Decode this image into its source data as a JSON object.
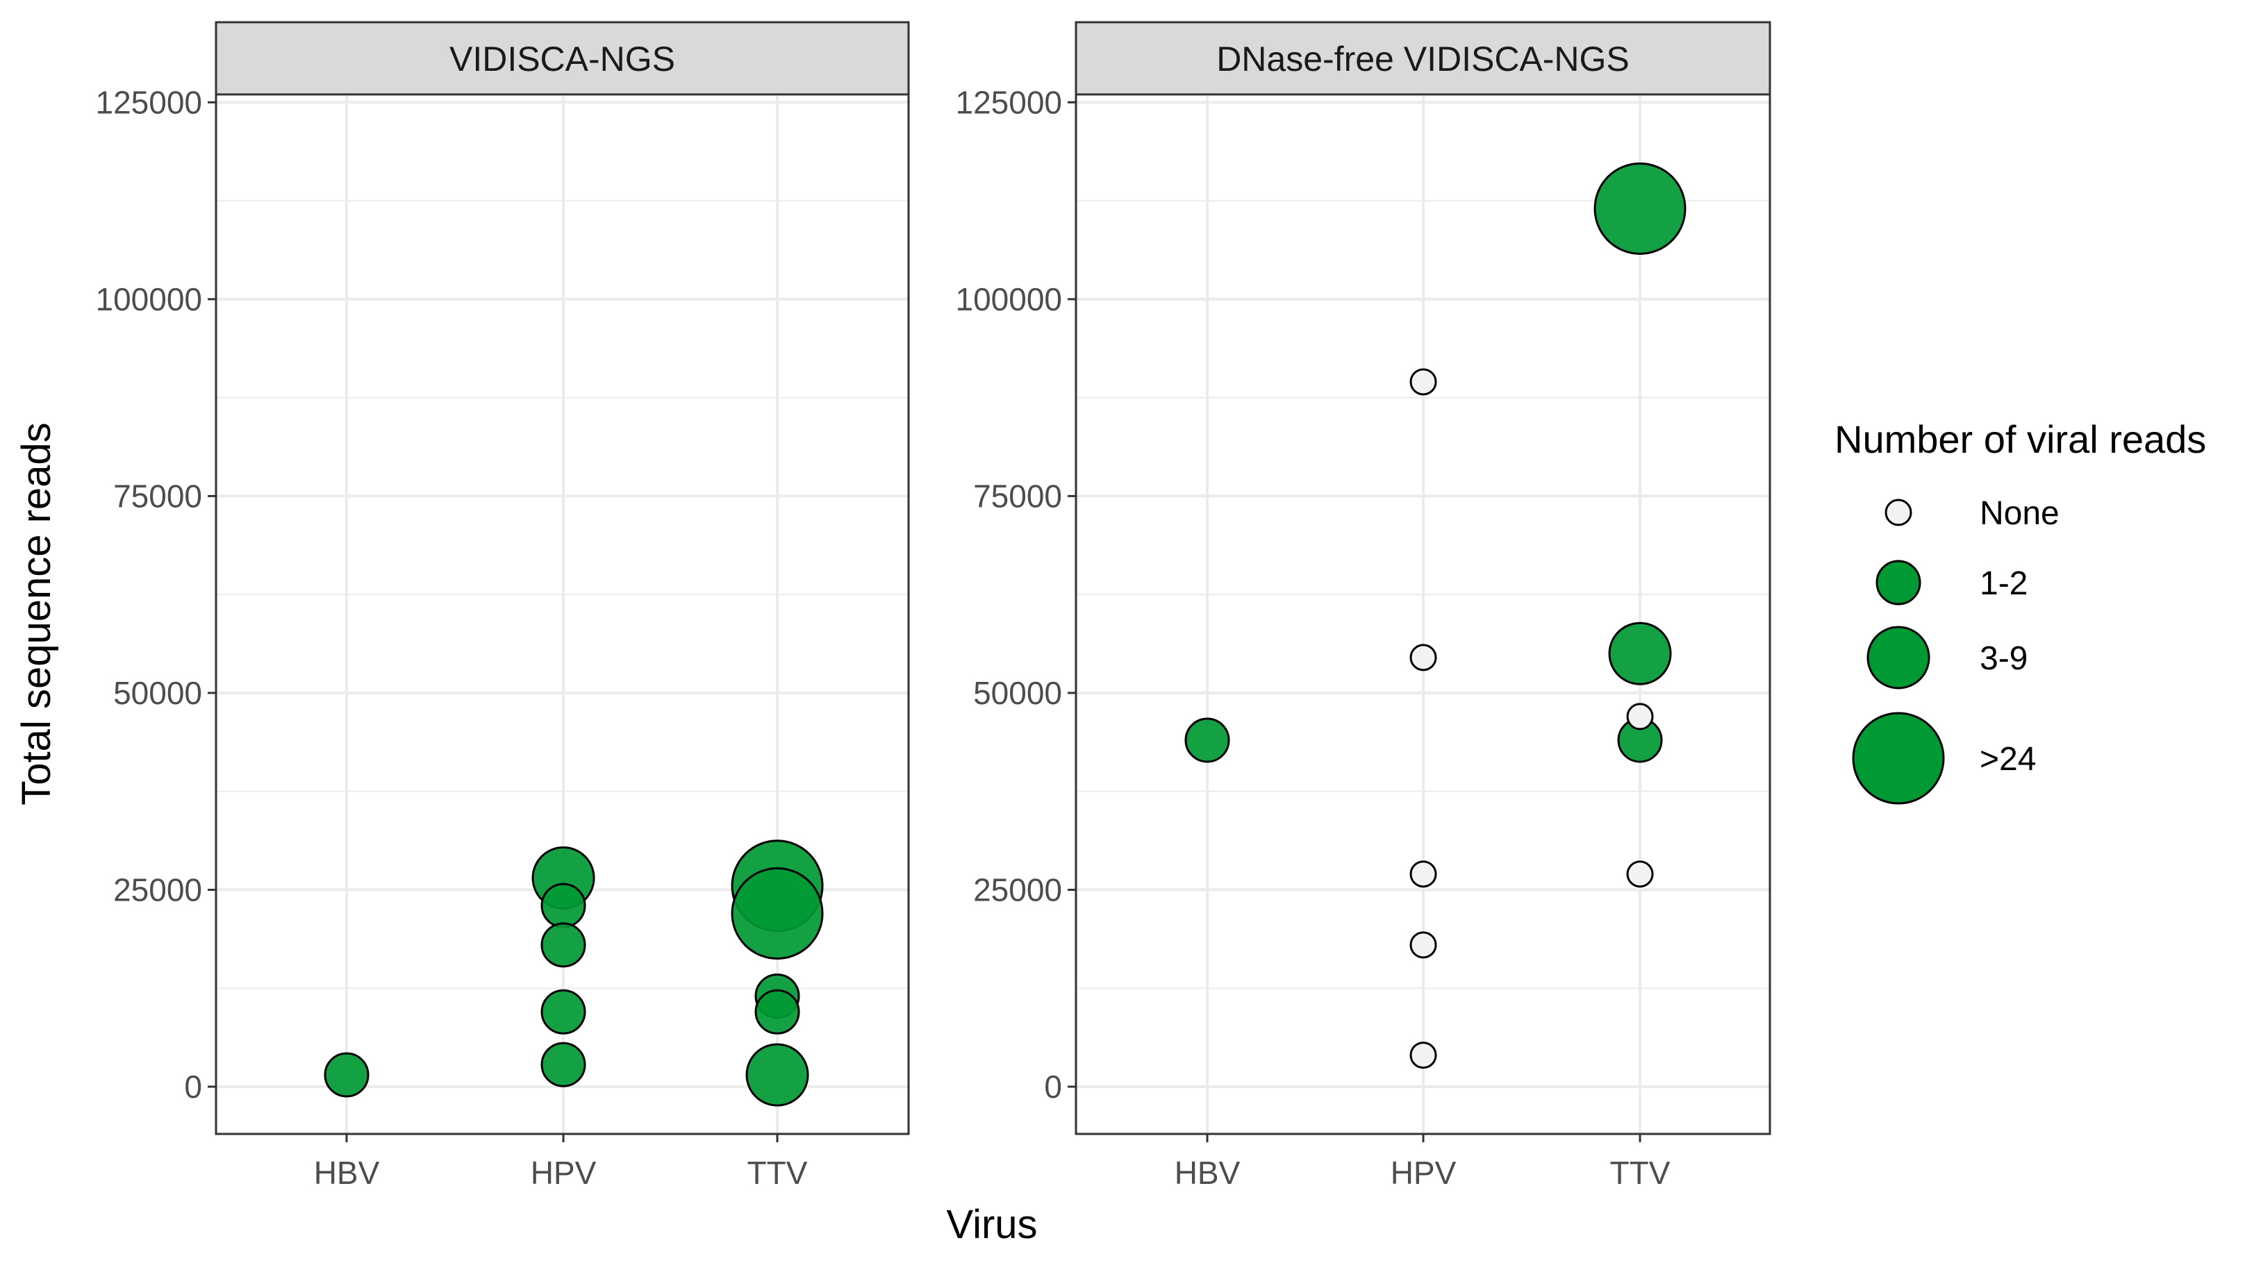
{
  "colors": {
    "positive_fill": "#009933",
    "none_fill": "#f2f2f2",
    "panel_border": "#333333",
    "strip_fill": "#d9d9d9",
    "grid": "#ebebeb"
  },
  "chart_data": {
    "type": "scatter",
    "xlabel": "Virus",
    "ylabel": "Total sequence reads",
    "categories": [
      "HBV",
      "HPV",
      "TTV"
    ],
    "y_ticks": [
      0,
      25000,
      50000,
      75000,
      100000,
      125000
    ],
    "y_tick_labels": [
      "0",
      "25000",
      "50000",
      "75000",
      "100000",
      "125000"
    ],
    "ylim": [
      -6000,
      126000
    ],
    "grid": true,
    "legend": {
      "title": "Number of viral reads",
      "position": "right",
      "entries": [
        {
          "key": "none",
          "label": "None"
        },
        {
          "key": "1-2",
          "label": "1-2"
        },
        {
          "key": "3-9",
          "label": "3-9"
        },
        {
          "key": ">24",
          "label": ">24"
        }
      ]
    },
    "panels": [
      {
        "title": "VIDISCA-NGS",
        "points": [
          {
            "x": "HBV",
            "y": 1500,
            "reads": "1-2"
          },
          {
            "x": "HPV",
            "y": 26500,
            "reads": "3-9"
          },
          {
            "x": "HPV",
            "y": 23000,
            "reads": "1-2"
          },
          {
            "x": "HPV",
            "y": 18000,
            "reads": "1-2"
          },
          {
            "x": "HPV",
            "y": 9500,
            "reads": "1-2"
          },
          {
            "x": "HPV",
            "y": 2800,
            "reads": "1-2"
          },
          {
            "x": "TTV",
            "y": 25500,
            "reads": ">24"
          },
          {
            "x": "TTV",
            "y": 22000,
            "reads": ">24"
          },
          {
            "x": "TTV",
            "y": 11500,
            "reads": "1-2"
          },
          {
            "x": "TTV",
            "y": 9500,
            "reads": "1-2"
          },
          {
            "x": "TTV",
            "y": 1500,
            "reads": "3-9"
          }
        ]
      },
      {
        "title": "DNase-free VIDISCA-NGS",
        "points": [
          {
            "x": "HBV",
            "y": 44000,
            "reads": "1-2"
          },
          {
            "x": "HPV",
            "y": 89500,
            "reads": "none"
          },
          {
            "x": "HPV",
            "y": 54500,
            "reads": "none"
          },
          {
            "x": "HPV",
            "y": 27000,
            "reads": "none"
          },
          {
            "x": "HPV",
            "y": 18000,
            "reads": "none"
          },
          {
            "x": "HPV",
            "y": 4000,
            "reads": "none"
          },
          {
            "x": "TTV",
            "y": 111500,
            "reads": ">24"
          },
          {
            "x": "TTV",
            "y": 55000,
            "reads": "3-9"
          },
          {
            "x": "TTV",
            "y": 47000,
            "reads": "none"
          },
          {
            "x": "TTV",
            "y": 44000,
            "reads": "1-2"
          },
          {
            "x": "TTV",
            "y": 27000,
            "reads": "none"
          }
        ]
      }
    ]
  }
}
